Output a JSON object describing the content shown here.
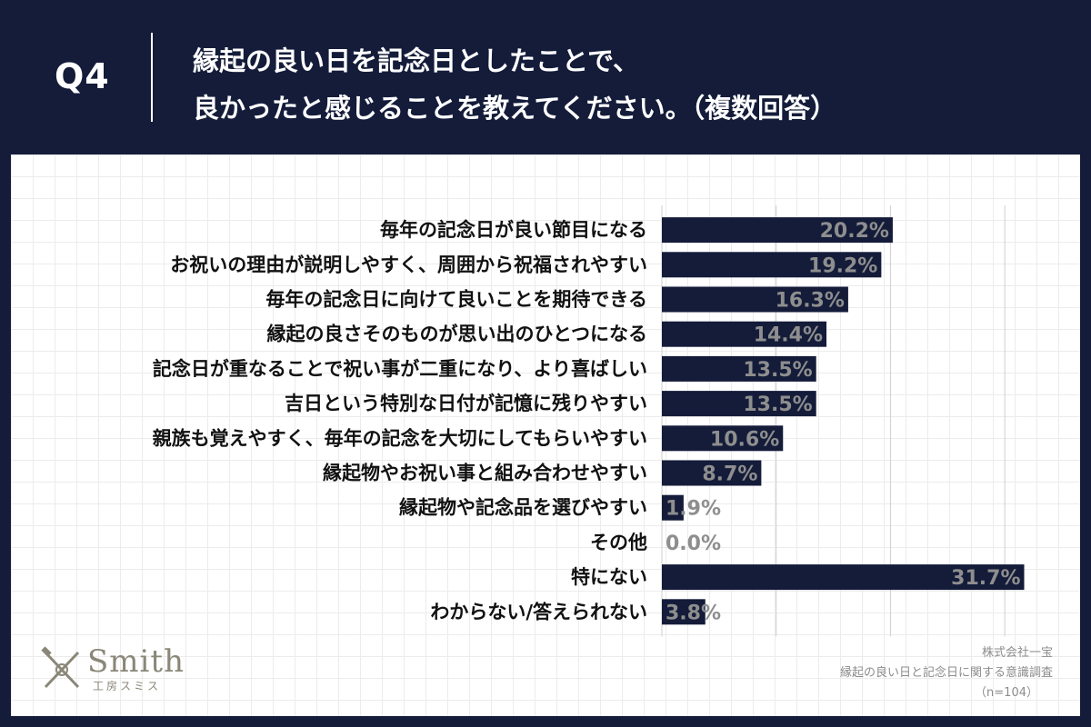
{
  "header": {
    "q_label": "Q4",
    "question_line1": "縁起の良い日を記念日としたことで、",
    "question_line2": "良かったと感じることを教えてください。（複数回答）"
  },
  "colors": {
    "background": "#141c3a",
    "bar": "#141c3a",
    "value_text": "#8e8e8e",
    "label_text": "#111111"
  },
  "chart_data": {
    "type": "bar",
    "orientation": "horizontal",
    "title": "縁起の良い日を記念日としたことで、良かったと感じることを教えてください。（複数回答）",
    "xlim": [
      0,
      35
    ],
    "grid": true,
    "unit": "%",
    "categories": [
      "毎年の記念日が良い節目になる",
      "お祝いの理由が説明しやすく、周囲から祝福されやすい",
      "毎年の記念日に向けて良いことを期待できる",
      "縁起の良さそのものが思い出のひとつになる",
      "記念日が重なることで祝い事が二重になり、より喜ばしい",
      "吉日という特別な日付が記憶に残りやすい",
      "親族も覚えやすく、毎年の記念を大切にしてもらいやすい",
      "縁起物やお祝い事と組み合わせやすい",
      "縁起物や記念品を選びやすい",
      "その他",
      "特にない",
      "わからない/答えられない"
    ],
    "values": [
      20.2,
      19.2,
      16.3,
      14.4,
      13.5,
      13.5,
      10.6,
      8.7,
      1.9,
      0.0,
      31.7,
      3.8
    ],
    "value_labels": [
      "20.2%",
      "19.2%",
      "16.3%",
      "14.4%",
      "13.5%",
      "13.5%",
      "10.6%",
      "8.7%",
      "1.9%",
      "0.0%",
      "31.7%",
      "3.8%"
    ]
  },
  "logo": {
    "name": "Smith",
    "subtitle": "工房スミス"
  },
  "source": {
    "company": "株式会社一宝",
    "survey": "縁起の良い日と記念日に関する意識調査",
    "n": "（n=104）"
  }
}
